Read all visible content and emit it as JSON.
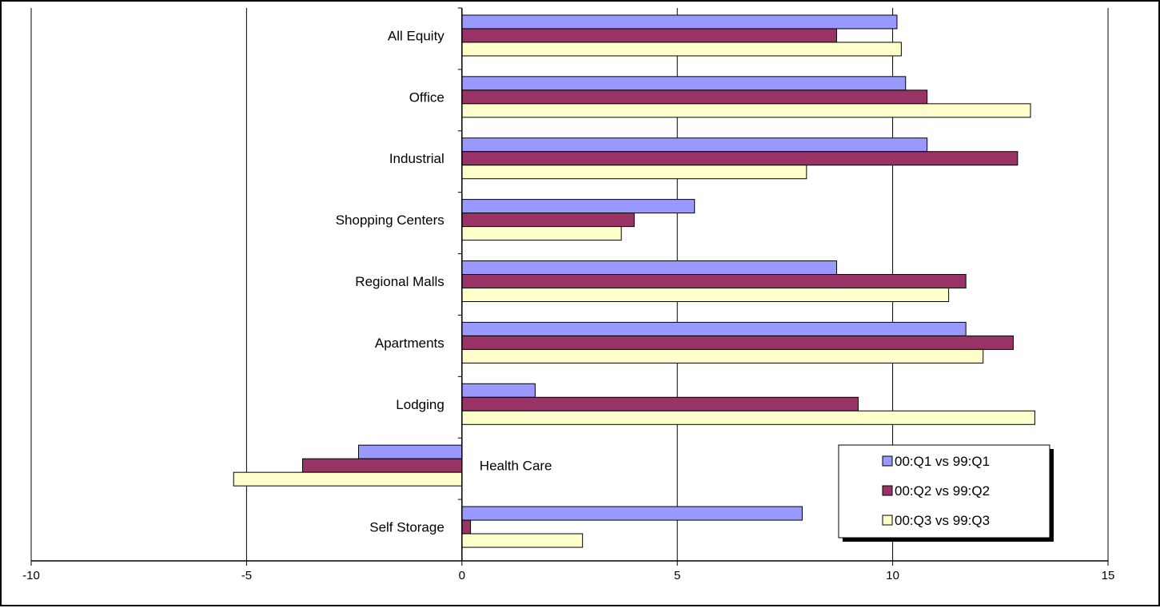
{
  "chart_data": {
    "type": "bar",
    "orientation": "horizontal",
    "title": "",
    "xlabel": "",
    "ylabel": "",
    "xlim": [
      -10,
      15
    ],
    "x_ticks": [
      "-10",
      "-5",
      "0",
      "5",
      "10",
      "15"
    ],
    "grid": "vertical",
    "legend_position": "bottom-right",
    "categories": [
      "All Equity",
      "Office",
      "Industrial",
      "Shopping Centers",
      "Regional Malls",
      "Apartments",
      "Lodging",
      "Health Care",
      "Self Storage"
    ],
    "series": [
      {
        "name": "00:Q1 vs 99:Q1",
        "color": "#9999ff",
        "values": [
          10.1,
          10.3,
          10.8,
          5.4,
          8.7,
          11.7,
          1.7,
          -2.4,
          7.9
        ]
      },
      {
        "name": "00:Q2 vs 99:Q2",
        "color": "#993366",
        "values": [
          8.7,
          10.8,
          12.9,
          4.0,
          11.7,
          12.8,
          9.2,
          -3.7,
          0.2
        ]
      },
      {
        "name": "00:Q3 vs 99:Q3",
        "color": "#ffffcc",
        "values": [
          10.2,
          13.2,
          8.0,
          3.7,
          11.3,
          12.1,
          13.3,
          -5.3,
          2.8
        ]
      }
    ]
  }
}
